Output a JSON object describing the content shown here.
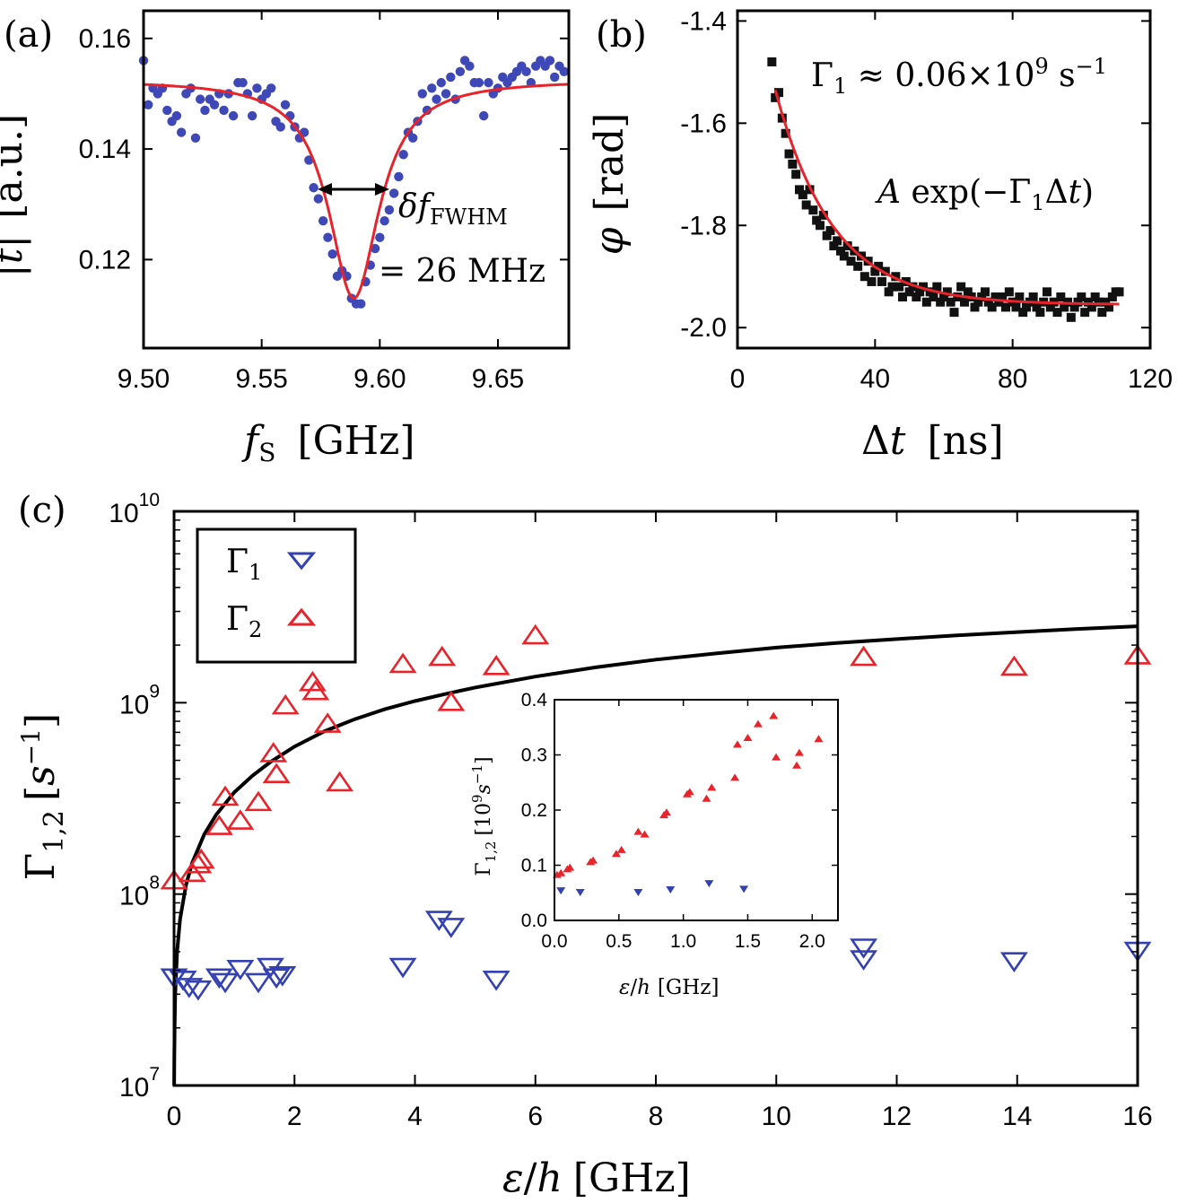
{
  "panels": {
    "a": "(a)",
    "b": "(b)",
    "c": "(c)"
  },
  "colors": {
    "data_blue": "#3f48b7",
    "fit_red": "#e8232a",
    "theory_black": "#000000",
    "gamma1_blue": "#3341b2",
    "gamma2_red": "#e8232a"
  },
  "chart_data": [
    {
      "id": "a",
      "type": "scatter",
      "xlabel": "f_S [GHz]",
      "ylabel": "|t| [a.u.]",
      "xlim": [
        9.5,
        9.68
      ],
      "ylim": [
        0.104,
        0.165
      ],
      "xticks": [
        "9.50",
        "9.55",
        "9.60",
        "9.65"
      ],
      "xtick_values": [
        9.5,
        9.55,
        9.6,
        9.65
      ],
      "yticks": [
        "0.12",
        "0.14",
        "0.16"
      ],
      "ytick_values": [
        0.12,
        0.14,
        0.16
      ],
      "annotation_top": "δf",
      "annotation_sub": "FWHM",
      "annotation_bottom": "= 26 MHz",
      "series": [
        {
          "kind": "points",
          "x": [
            9.5,
            9.502,
            9.504,
            9.506,
            9.508,
            9.51,
            9.512,
            9.514,
            9.516,
            9.518,
            9.52,
            9.522,
            9.524,
            9.526,
            9.528,
            9.53,
            9.532,
            9.534,
            9.536,
            9.538,
            9.54,
            9.542,
            9.544,
            9.546,
            9.548,
            9.55,
            9.552,
            9.554,
            9.556,
            9.558,
            9.56,
            9.562,
            9.564,
            9.566,
            9.568,
            9.57,
            9.572,
            9.574,
            9.576,
            9.578,
            9.58,
            9.582,
            9.584,
            9.586,
            9.588,
            9.59,
            9.592,
            9.594,
            9.596,
            9.598,
            9.6,
            9.602,
            9.604,
            9.606,
            9.608,
            9.61,
            9.612,
            9.614,
            9.616,
            9.618,
            9.62,
            9.622,
            9.624,
            9.626,
            9.628,
            9.63,
            9.632,
            9.634,
            9.636,
            9.638,
            9.64,
            9.642,
            9.644,
            9.646,
            9.648,
            9.65,
            9.652,
            9.654,
            9.656,
            9.658,
            9.66,
            9.662,
            9.664,
            9.666,
            9.668,
            9.67,
            9.672,
            9.674,
            9.676,
            9.678
          ],
          "y": [
            0.156,
            0.148,
            0.151,
            0.15,
            0.151,
            0.147,
            0.145,
            0.146,
            0.143,
            0.15,
            0.151,
            0.142,
            0.149,
            0.147,
            0.149,
            0.148,
            0.15,
            0.147,
            0.15,
            0.146,
            0.152,
            0.152,
            0.15,
            0.146,
            0.151,
            0.149,
            0.15,
            0.151,
            0.145,
            0.144,
            0.148,
            0.146,
            0.144,
            0.142,
            0.143,
            0.138,
            0.133,
            0.131,
            0.127,
            0.124,
            0.121,
            0.117,
            0.118,
            0.117,
            0.113,
            0.112,
            0.112,
            0.116,
            0.119,
            0.122,
            0.124,
            0.127,
            0.129,
            0.132,
            0.135,
            0.139,
            0.143,
            0.142,
            0.145,
            0.15,
            0.147,
            0.151,
            0.149,
            0.152,
            0.15,
            0.153,
            0.149,
            0.154,
            0.156,
            0.155,
            0.152,
            0.152,
            0.146,
            0.152,
            0.15,
            0.151,
            0.153,
            0.152,
            0.153,
            0.154,
            0.155,
            0.154,
            0.152,
            0.155,
            0.156,
            0.155,
            0.156,
            0.153,
            0.155,
            0.154
          ],
          "color": "#3f48b7"
        },
        {
          "kind": "curve",
          "model": "lorentzian",
          "baseline": 0.1525,
          "depth": 0.0395,
          "center": 9.589,
          "fwhm": 0.026,
          "color": "#e8232a"
        }
      ]
    },
    {
      "id": "b",
      "type": "scatter",
      "xlabel": "Δt [ns]",
      "ylabel": "φ [rad]",
      "xlim": [
        0,
        120
      ],
      "ylim": [
        -2.04,
        -1.38
      ],
      "xticks": [
        "0",
        "40",
        "80",
        "120"
      ],
      "xtick_values": [
        0,
        40,
        80,
        120
      ],
      "yticks": [
        "-2.0",
        "-1.8",
        "-1.6",
        "-1.4"
      ],
      "ytick_values": [
        -2.0,
        -1.8,
        -1.6,
        -1.4
      ],
      "annotation_rate": "Γ₁ ≈ 0.06×10⁹ s⁻¹",
      "annotation_model": "A exp(−Γ₁Δt)",
      "series": [
        {
          "kind": "points",
          "x": [
            10,
            11,
            12,
            13,
            14,
            15,
            16,
            17,
            18,
            19,
            20,
            21,
            22,
            23,
            24,
            25,
            26,
            27,
            28,
            29,
            30,
            31,
            32,
            33,
            34,
            35,
            36,
            37,
            38,
            39,
            40,
            41,
            42,
            43,
            44,
            45,
            46,
            47,
            48,
            49,
            50,
            51,
            52,
            53,
            54,
            55,
            56,
            57,
            58,
            59,
            60,
            61,
            62,
            63,
            64,
            65,
            66,
            67,
            68,
            69,
            70,
            71,
            72,
            73,
            74,
            75,
            76,
            77,
            78,
            79,
            80,
            81,
            82,
            83,
            84,
            85,
            86,
            87,
            88,
            89,
            90,
            91,
            92,
            93,
            94,
            95,
            96,
            97,
            98,
            99,
            100,
            101,
            102,
            103,
            104,
            105,
            106,
            107,
            108,
            109,
            110,
            111
          ],
          "y": [
            -1.48,
            -1.55,
            -1.54,
            -1.59,
            -1.62,
            -1.66,
            -1.68,
            -1.7,
            -1.73,
            -1.74,
            -1.76,
            -1.73,
            -1.77,
            -1.79,
            -1.8,
            -1.78,
            -1.82,
            -1.81,
            -1.84,
            -1.83,
            -1.85,
            -1.86,
            -1.84,
            -1.87,
            -1.85,
            -1.88,
            -1.86,
            -1.9,
            -1.87,
            -1.91,
            -1.89,
            -1.88,
            -1.91,
            -1.89,
            -1.93,
            -1.92,
            -1.9,
            -1.92,
            -1.94,
            -1.91,
            -1.93,
            -1.92,
            -1.94,
            -1.93,
            -1.92,
            -1.95,
            -1.93,
            -1.94,
            -1.92,
            -1.95,
            -1.94,
            -1.93,
            -1.95,
            -1.97,
            -1.94,
            -1.92,
            -1.95,
            -1.93,
            -1.94,
            -1.96,
            -1.95,
            -1.94,
            -1.93,
            -1.95,
            -1.96,
            -1.94,
            -1.95,
            -1.94,
            -1.96,
            -1.93,
            -1.95,
            -1.96,
            -1.94,
            -1.97,
            -1.96,
            -1.95,
            -1.94,
            -1.96,
            -1.97,
            -1.95,
            -1.93,
            -1.96,
            -1.95,
            -1.97,
            -1.94,
            -1.96,
            -1.95,
            -1.98,
            -1.96,
            -1.95,
            -1.94,
            -1.97,
            -1.95,
            -1.96,
            -1.94,
            -1.95,
            -1.97,
            -1.95,
            -1.96,
            -1.94,
            -1.93,
            -1.93
          ],
          "color": "#111111"
        },
        {
          "kind": "curve",
          "model": "exponential",
          "offset": -1.955,
          "amplitude": 0.42,
          "start": 11,
          "rate": 0.06,
          "x_range": [
            11,
            111
          ],
          "color": "#e8232a"
        }
      ]
    },
    {
      "id": "c",
      "type": "scatter",
      "xlabel": "ε/h [GHz]",
      "ylabel": "Γ1,2 [s−1]",
      "xlim": [
        0,
        16
      ],
      "ylim": [
        10000000,
        10000000000
      ],
      "yscale": "log",
      "xticks": [
        "0",
        "2",
        "4",
        "6",
        "8",
        "10",
        "12",
        "14",
        "16"
      ],
      "xtick_values": [
        0,
        2,
        4,
        6,
        8,
        10,
        12,
        14,
        16
      ],
      "ytick_exponents": [
        "7",
        "8",
        "9",
        "10"
      ],
      "ytick_base": "10",
      "legend": {
        "placement": "top-left",
        "gamma1": "Γ1",
        "gamma2": "Γ2"
      },
      "series": [
        {
          "name": "Γ1",
          "marker": "triangle-down",
          "x": [
            0.0,
            0.15,
            0.25,
            0.4,
            0.75,
            0.85,
            1.1,
            1.4,
            1.6,
            1.7,
            1.8,
            3.8,
            4.4,
            4.6,
            5.35,
            11.45,
            11.45,
            13.95,
            16.0
          ],
          "y": [
            37000000.0,
            36000000.0,
            33000000.0,
            32000000.0,
            37000000.0,
            35000000.0,
            41000000.0,
            35000000.0,
            42000000.0,
            37000000.0,
            38000000.0,
            42000000.0,
            74000000.0,
            68000000.0,
            36000000.0,
            53000000.0,
            46000000.0,
            45000000.0,
            51000000.0
          ],
          "color": "#3341b2"
        },
        {
          "name": "Γ2",
          "marker": "triangle-up",
          "x": [
            0.0,
            0.3,
            0.4,
            0.45,
            0.75,
            0.85,
            1.1,
            1.4,
            1.65,
            1.7,
            1.85,
            2.3,
            2.35,
            2.55,
            2.75,
            3.8,
            4.45,
            4.6,
            5.35,
            6.0,
            11.45,
            13.95,
            16.0
          ],
          "y": [
            117000000.0,
            128000000.0,
            142000000.0,
            150000000.0,
            225000000.0,
            320000000.0,
            240000000.0,
            300000000.0,
            540000000.0,
            420000000.0,
            960000000.0,
            1270000000.0,
            1140000000.0,
            770000000.0,
            380000000.0,
            1580000000.0,
            1720000000.0,
            1000000000.0,
            1540000000.0,
            2230000000.0,
            1720000000.0,
            1530000000.0,
            1750000000.0
          ],
          "color": "#e8232a"
        },
        {
          "name": "",
          "kind": "theory",
          "x": [
            0.002,
            0.005,
            0.01,
            0.02,
            0.05,
            0.1,
            0.2,
            0.3,
            0.5,
            0.7,
            1.0,
            1.3,
            1.6,
            2.0,
            2.5,
            3.0,
            3.5,
            4.0,
            4.5,
            5.0,
            6.0,
            7.0,
            8.0,
            9.0,
            10.0,
            11.0,
            12.0,
            13.0,
            14.0,
            15.0,
            16.0
          ],
          "y": [
            10000000.0,
            14000000.0,
            21000000.0,
            30000000.0,
            50000000.0,
            74000000.0,
            112000000.0,
            145000000.0,
            205000000.0,
            260000000.0,
            340000000.0,
            415000000.0,
            490000000.0,
            590000000.0,
            710000000.0,
            820000000.0,
            925000000.0,
            1020000000.0,
            1110000000.0,
            1200000000.0,
            1370000000.0,
            1530000000.0,
            1680000000.0,
            1810000000.0,
            1940000000.0,
            2050000000.0,
            2150000000.0,
            2250000000.0,
            2340000000.0,
            2430000000.0,
            2510000000.0
          ],
          "color": "#000000"
        }
      ]
    },
    {
      "id": "c_inset",
      "type": "scatter",
      "xlabel": "ε/h [GHz]",
      "ylabel": "Γ1,2 [10⁹s⁻¹]",
      "xlim": [
        0,
        2.2
      ],
      "ylim": [
        0,
        0.4
      ],
      "xticks": [
        "0.0",
        "0.5",
        "1.0",
        "1.5",
        "2.0"
      ],
      "xtick_values": [
        0.0,
        0.5,
        1.0,
        1.5,
        2.0
      ],
      "yticks": [
        "0.0",
        "0.1",
        "0.2",
        "0.3",
        "0.4"
      ],
      "ytick_values": [
        0.0,
        0.1,
        0.2,
        0.3,
        0.4
      ],
      "series": [
        {
          "name": "Γ1",
          "marker": "triangle-down",
          "x": [
            0.05,
            0.2,
            0.65,
            0.9,
            1.2,
            1.47
          ],
          "y": [
            0.055,
            0.052,
            0.052,
            0.057,
            0.068,
            0.058
          ],
          "color": "#3341b2"
        },
        {
          "name": "Γ2",
          "marker": "triangle-up",
          "x": [
            0.02,
            0.05,
            0.1,
            0.12,
            0.28,
            0.3,
            0.48,
            0.52,
            0.65,
            0.7,
            0.85,
            0.87,
            1.03,
            1.05,
            1.18,
            1.22,
            1.4,
            1.42,
            1.5,
            1.58,
            1.7,
            1.72,
            1.88,
            1.9,
            2.05
          ],
          "y": [
            0.082,
            0.085,
            0.092,
            0.095,
            0.105,
            0.108,
            0.12,
            0.127,
            0.16,
            0.155,
            0.19,
            0.195,
            0.228,
            0.232,
            0.22,
            0.24,
            0.258,
            0.318,
            0.33,
            0.355,
            0.37,
            0.295,
            0.28,
            0.303,
            0.328
          ],
          "color": "#e8232a"
        }
      ]
    }
  ]
}
